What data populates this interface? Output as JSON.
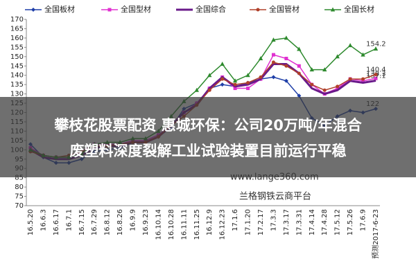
{
  "chart_data": {
    "type": "line",
    "categories": [
      "16.5.20",
      "16.6.3",
      "16.6.17",
      "16.7.1",
      "16.7.15",
      "16.7.29",
      "16.8.12",
      "16.8.26",
      "16.9.9",
      "16.9.23",
      "16.10.14",
      "16.10.28",
      "16.11.11",
      "16.11.25",
      "16.12.9",
      "16.12.23",
      "17.1.6",
      "17.1.20",
      "17.2.17",
      "17.3.3",
      "17.3.17",
      "17.3.31",
      "17.4.14",
      "17.4.28",
      "17.5.12",
      "17.5.26",
      "17.6.9",
      "预测2017-6-23"
    ],
    "series": [
      {
        "name": "全国板材",
        "color": "#1f3fa8",
        "marker": "diamond",
        "values": [
          103,
          96,
          93,
          93,
          95,
          99,
          100,
          101,
          104,
          104,
          107,
          112,
          122,
          125,
          133,
          135,
          134,
          136,
          138,
          139,
          137,
          129,
          117,
          113,
          118,
          121,
          120,
          122
        ]
      },
      {
        "name": "全国型材",
        "color": "#e030d0",
        "marker": "square",
        "values": [
          101,
          97,
          96,
          96,
          99,
          103,
          103,
          103,
          105,
          105,
          108,
          113,
          120,
          125,
          133,
          139,
          133,
          133,
          138,
          151,
          149,
          145,
          135,
          130,
          133,
          138,
          137,
          138.3
        ]
      },
      {
        "name": "全国综合",
        "color": "#6a1a8a",
        "marker": "none",
        "values": [
          100,
          96,
          95,
          95,
          97,
          101,
          102,
          102,
          104,
          104,
          107,
          113,
          120,
          124,
          133,
          139,
          134,
          135,
          138,
          146,
          146,
          141,
          133,
          130,
          132,
          137,
          136,
          137.1
        ]
      },
      {
        "name": "全国管材",
        "color": "#b0402a",
        "marker": "circle",
        "values": [
          99,
          97,
          96,
          97,
          99,
          102,
          102,
          103,
          104,
          104,
          107,
          113,
          118,
          124,
          132,
          138,
          135,
          136,
          139,
          147,
          145,
          141,
          135,
          132,
          134,
          138,
          138,
          140.4
        ]
      },
      {
        "name": "全国长材",
        "color": "#2e8a2e",
        "marker": "triangle",
        "values": [
          100,
          97,
          96,
          96,
          98,
          103,
          104,
          104,
          106,
          106,
          110,
          118,
          126,
          132,
          140,
          146,
          137,
          140,
          149,
          159,
          160,
          154,
          143,
          143,
          150,
          156,
          151,
          154.2
        ]
      }
    ],
    "ylim": [
      70,
      170
    ],
    "yticks": [
      70,
      75,
      80,
      85,
      90,
      95,
      100,
      105,
      110,
      115,
      120,
      125,
      130,
      135,
      140,
      145,
      150,
      155,
      160,
      165,
      170
    ],
    "grid": false,
    "watermark": [
      "www.lange360.com",
      "兰格钢铁云商平台"
    ]
  },
  "banner": {
    "lines": [
      "攀枝花股票配资 惠城环保：公司20万吨/年混合",
      "废塑料深度裂解工业试验装置目前运行平稳"
    ]
  }
}
